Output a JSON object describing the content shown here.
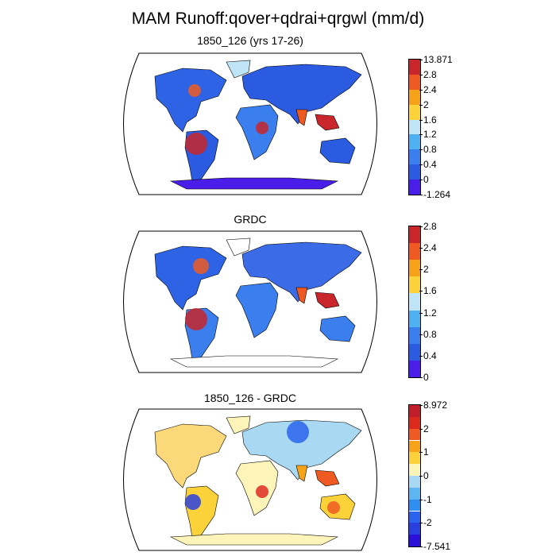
{
  "main_title": "MAM Runoff:qover+qdrai+qrgwl (mm/d)",
  "panels": [
    {
      "title": "1850_126 (yrs 17-26)",
      "colorbar": {
        "colors": [
          "#4a1ee8",
          "#2a5be0",
          "#3b7fee",
          "#4fb0f2",
          "#bfe4f5",
          "#fbd23a",
          "#f5a21a",
          "#ee5a22",
          "#c8262a"
        ],
        "labels": [
          "13.871",
          "2.8",
          "2.4",
          "2",
          "1.6",
          "1.2",
          "0.8",
          "0.4",
          "0",
          "-1.264"
        ]
      }
    },
    {
      "title": "GRDC",
      "colorbar": {
        "colors": [
          "#4a1ee8",
          "#2a5be0",
          "#3b7fee",
          "#4fb0f2",
          "#bfe4f5",
          "#fbd23a",
          "#f5a21a",
          "#ee5a22",
          "#c8262a"
        ],
        "labels": [
          "2.8",
          "2.4",
          "2",
          "1.6",
          "1.2",
          "0.8",
          "0.4",
          "0"
        ]
      }
    },
    {
      "title": "1850_126 - GRDC",
      "colorbar": {
        "colors": [
          "#2a10d8",
          "#2a3fe0",
          "#2a64ee",
          "#2f8ef2",
          "#5db6f2",
          "#a8d8f2",
          "#fcf4b8",
          "#fbd23a",
          "#f6a31a",
          "#ee5a22",
          "#dd2a1e",
          "#c01e2a"
        ],
        "labels": [
          "8.972",
          "2",
          "1",
          "0",
          "-1",
          "-2",
          "-7.541"
        ]
      }
    }
  ]
}
